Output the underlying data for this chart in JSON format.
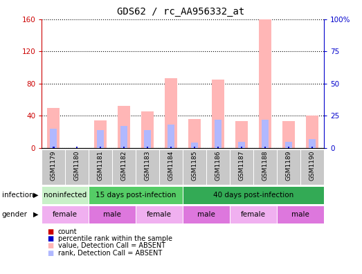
{
  "title": "GDS62 / rc_AA956332_at",
  "samples": [
    "GSM1179",
    "GSM1180",
    "GSM1181",
    "GSM1182",
    "GSM1183",
    "GSM1184",
    "GSM1185",
    "GSM1186",
    "GSM1187",
    "GSM1188",
    "GSM1189",
    "GSM1190"
  ],
  "value_absent": [
    50,
    0,
    34,
    52,
    45,
    87,
    36,
    85,
    33,
    160,
    33,
    40
  ],
  "rank_absent": [
    15,
    0,
    14,
    17,
    14,
    18,
    4,
    22,
    5,
    22,
    5,
    7
  ],
  "ylim_left": [
    0,
    160
  ],
  "ylim_right": [
    0,
    100
  ],
  "yticks_left": [
    0,
    40,
    80,
    120,
    160
  ],
  "yticks_right": [
    0,
    25,
    50,
    75,
    100
  ],
  "color_value_absent": "#ffb6b6",
  "color_rank_absent": "#b0b8ff",
  "color_count": "#cc0000",
  "color_percentile": "#0000cc",
  "inf_groups": [
    {
      "label": "noninfected",
      "start": 0,
      "end": 2,
      "color": "#c8f0c8"
    },
    {
      "label": "15 days post-infection",
      "start": 2,
      "end": 6,
      "color": "#55cc66"
    },
    {
      "label": "40 days post-infection",
      "start": 6,
      "end": 12,
      "color": "#33aa55"
    }
  ],
  "gender_groups": [
    {
      "label": "female",
      "start": 0,
      "end": 2,
      "color": "#f0b0f0"
    },
    {
      "label": "male",
      "start": 2,
      "end": 4,
      "color": "#dd77dd"
    },
    {
      "label": "female",
      "start": 4,
      "end": 6,
      "color": "#f0b0f0"
    },
    {
      "label": "male",
      "start": 6,
      "end": 8,
      "color": "#dd77dd"
    },
    {
      "label": "female",
      "start": 8,
      "end": 10,
      "color": "#f0b0f0"
    },
    {
      "label": "male",
      "start": 10,
      "end": 12,
      "color": "#dd77dd"
    }
  ],
  "legend_items": [
    {
      "label": "count",
      "color": "#cc0000"
    },
    {
      "label": "percentile rank within the sample",
      "color": "#0000cc"
    },
    {
      "label": "value, Detection Call = ABSENT",
      "color": "#ffb6b6"
    },
    {
      "label": "rank, Detection Call = ABSENT",
      "color": "#b0b8ff"
    }
  ]
}
